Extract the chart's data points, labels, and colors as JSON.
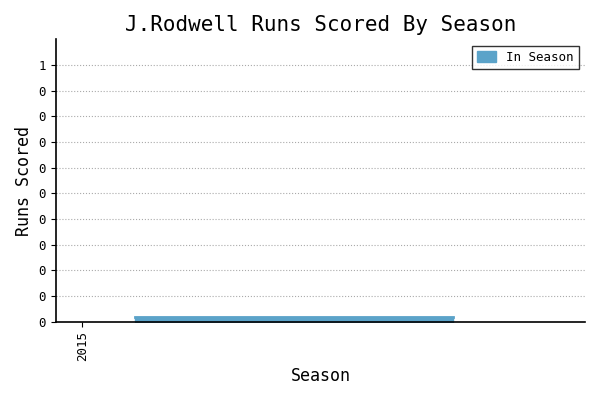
{
  "title": "J.Rodwell Runs Scored By Season",
  "xlabel": "Season",
  "ylabel": "Runs Scored",
  "legend_label": "In Season",
  "bar_color": "#5ba3c9",
  "background_color": "#ffffff",
  "x_start": 2016,
  "x_end": 2022,
  "run_value": 0.02,
  "xlim": [
    2014.5,
    2024.5
  ],
  "ylim_max": 1.1,
  "ytick_count": 10,
  "ytick_max": 1.0,
  "xtick": 2015,
  "title_fontsize": 15,
  "label_fontsize": 12,
  "tick_fontsize": 9,
  "font_family": "monospace",
  "grid_color": "#aaaaaa",
  "grid_style": "dotted"
}
